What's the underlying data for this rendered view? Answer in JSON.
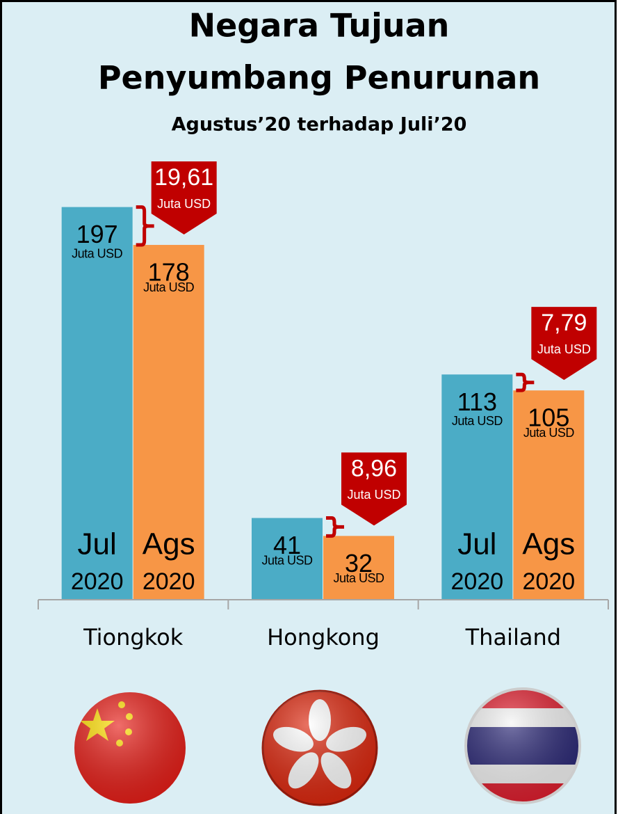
{
  "chart_data": {
    "type": "bar",
    "title": [
      "Negara Tujuan",
      "Penyumbang Penurunan"
    ],
    "subtitle": "Agustus’20 terhadap Juli’20",
    "unit": "Juta USD",
    "categories": [
      "Tiongkok",
      "Hongkong",
      "Thailand"
    ],
    "series": [
      {
        "name": "Jul",
        "year": "2020",
        "color": "#4bacc6",
        "values": [
          197,
          41,
          113
        ]
      },
      {
        "name": "Ags",
        "year": "2020",
        "color": "#f79646",
        "values": [
          178,
          32,
          105
        ]
      }
    ],
    "decreases": {
      "color": "#c00000",
      "values": [
        19.61,
        8.96,
        7.79
      ],
      "value_labels": [
        "19,61",
        "8,96",
        "7,79"
      ]
    },
    "ylim": [
      0,
      200
    ]
  }
}
